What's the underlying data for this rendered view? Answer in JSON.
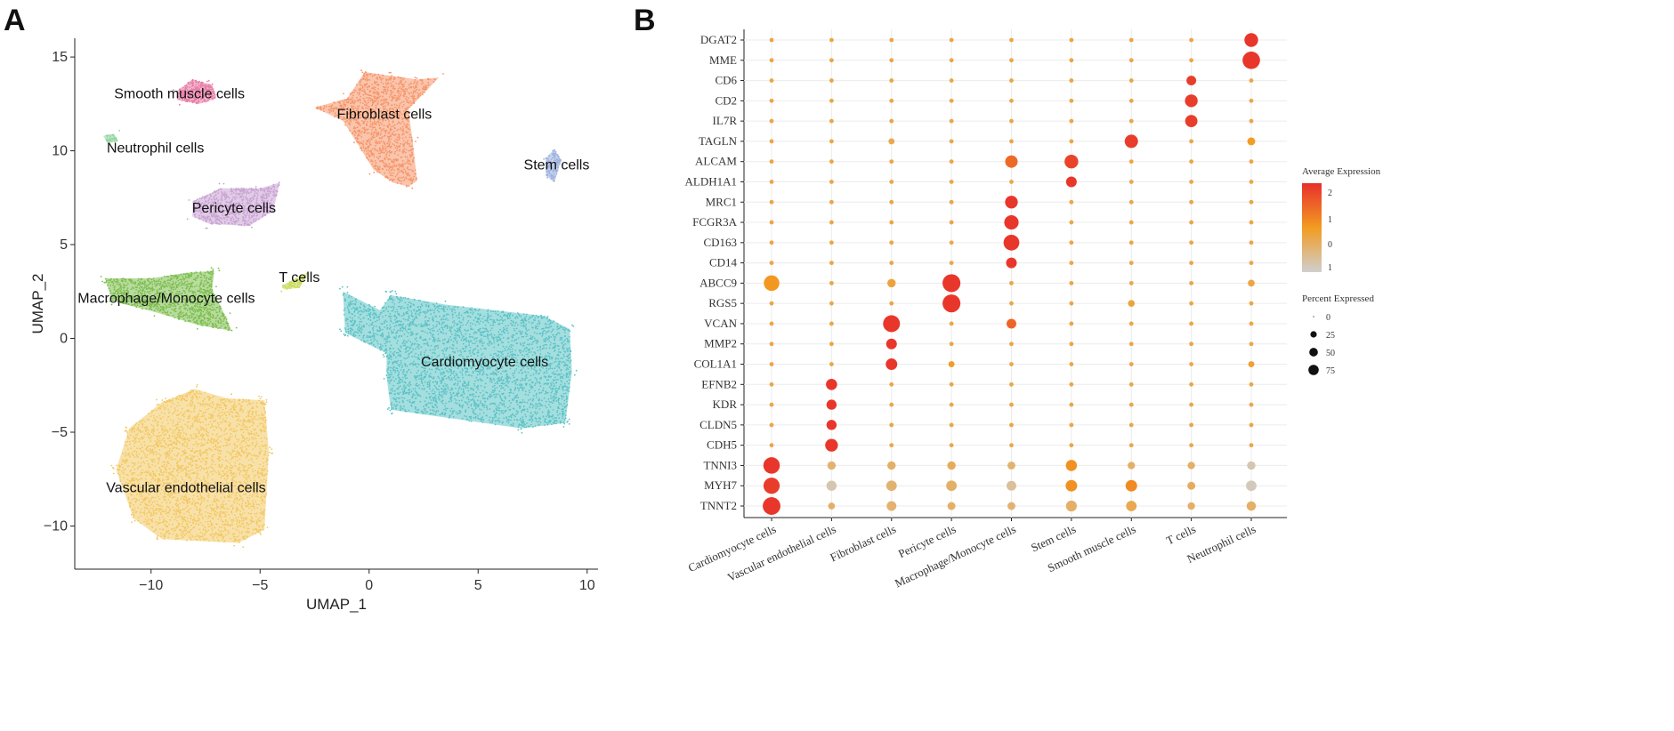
{
  "panels": {
    "a_label": "A",
    "b_label": "B"
  },
  "colors": {
    "cardiomyocyte": "#5BC2C5",
    "vascular": "#F2C863",
    "fibroblast": "#F6956A",
    "smooth": "#E87DA8",
    "pericyte": "#C9A3D3",
    "macrophage": "#7DBE4E",
    "tcells": "#CADB5E",
    "stem": "#9EB3DE",
    "neutrophil": "#8ED39B",
    "expr_high": "#E8302C",
    "expr_mid": "#F29B21",
    "expr_low": "#CFCFCF"
  },
  "chart_data": [
    {
      "type": "scatter",
      "title": "",
      "xlabel": "UMAP_1",
      "ylabel": "UMAP_2",
      "xlim": [
        -13.5,
        10.5
      ],
      "ylim": [
        -12.3,
        16
      ],
      "xticks": [
        -10,
        -5,
        0,
        5,
        10
      ],
      "yticks": [
        -10,
        -5,
        0,
        5,
        10,
        15
      ],
      "clusters": [
        {
          "name": "Cardiomyocyte cells",
          "color_key": "cardiomyocyte",
          "label_xy": [
            5.3,
            -1.5
          ],
          "n": 3200,
          "poly": [
            [
              -1.2,
              2.5
            ],
            [
              0.5,
              1.5
            ],
            [
              1,
              2.3
            ],
            [
              3.5,
              1.8
            ],
            [
              8,
              1.2
            ],
            [
              9.2,
              0.5
            ],
            [
              9.3,
              -1.8
            ],
            [
              9,
              -4.5
            ],
            [
              7,
              -4.8
            ],
            [
              1,
              -3.8
            ],
            [
              0.8,
              -2
            ],
            [
              0.8,
              -0.8
            ],
            [
              -1.1,
              0.3
            ]
          ]
        },
        {
          "name": "Vascular endothelial cells",
          "color_key": "vascular",
          "label_xy": [
            -8.4,
            -8.2
          ],
          "n": 2800,
          "poly": [
            [
              -11,
              -4.8
            ],
            [
              -9.5,
              -3.4
            ],
            [
              -8,
              -2.7
            ],
            [
              -6.5,
              -3.2
            ],
            [
              -4.8,
              -3.3
            ],
            [
              -4.6,
              -6
            ],
            [
              -4.8,
              -10.2
            ],
            [
              -6,
              -10.9
            ],
            [
              -9.5,
              -10.7
            ],
            [
              -10.8,
              -9.6
            ],
            [
              -11.6,
              -7
            ]
          ]
        },
        {
          "name": "Fibroblast cells",
          "color_key": "fibroblast",
          "label_xy": [
            0.7,
            11.7
          ],
          "n": 1300,
          "poly": [
            [
              -2.5,
              12.3
            ],
            [
              -1,
              12.8
            ],
            [
              -0.2,
              14.2
            ],
            [
              1,
              14
            ],
            [
              2.2,
              13.8
            ],
            [
              3.2,
              13.9
            ],
            [
              1.8,
              12.2
            ],
            [
              2,
              10.5
            ],
            [
              2.2,
              8.4
            ],
            [
              1.8,
              8.1
            ],
            [
              1.1,
              8.3
            ],
            [
              0.2,
              9
            ],
            [
              -0.6,
              10.5
            ],
            [
              -1.2,
              11.6
            ]
          ]
        },
        {
          "name": "Smooth muscle cells",
          "color_key": "smooth",
          "label_xy": [
            -8.7,
            12.8
          ],
          "n": 320,
          "poly": [
            [
              -8.8,
              13.2
            ],
            [
              -8.1,
              13.8
            ],
            [
              -7.2,
              13.5
            ],
            [
              -7,
              12.8
            ],
            [
              -7.8,
              12.5
            ],
            [
              -8.8,
              12.7
            ]
          ]
        },
        {
          "name": "Pericyte cells",
          "color_key": "pericyte",
          "label_xy": [
            -6.2,
            6.7
          ],
          "n": 700,
          "poly": [
            [
              -8.1,
              7.3
            ],
            [
              -6.8,
              8
            ],
            [
              -5,
              8
            ],
            [
              -4.1,
              8.3
            ],
            [
              -4.4,
              6.8
            ],
            [
              -5.5,
              6
            ],
            [
              -7.3,
              6.1
            ],
            [
              -8.1,
              6.5
            ]
          ]
        },
        {
          "name": "Macrophage/Monocyte cells",
          "color_key": "macrophage",
          "label_xy": [
            -9.3,
            1.9
          ],
          "n": 1100,
          "poly": [
            [
              -12.1,
              3.2
            ],
            [
              -10,
              3.2
            ],
            [
              -8.4,
              3.5
            ],
            [
              -7.1,
              3.6
            ],
            [
              -7.2,
              2.6
            ],
            [
              -6.6,
              1.2
            ],
            [
              -6.3,
              0.4
            ],
            [
              -7.8,
              0.7
            ],
            [
              -9.8,
              1.4
            ],
            [
              -11.8,
              2
            ]
          ]
        },
        {
          "name": "T cells",
          "color_key": "tcells",
          "label_xy": [
            -3.2,
            3
          ],
          "n": 90,
          "poly": [
            [
              -4,
              2.8
            ],
            [
              -3.4,
              3.2
            ],
            [
              -2.8,
              3.5
            ],
            [
              -3.2,
              2.7
            ],
            [
              -3.9,
              2.6
            ]
          ]
        },
        {
          "name": "Stem cells",
          "color_key": "stem",
          "label_xy": [
            8.6,
            9
          ],
          "n": 150,
          "poly": [
            [
              8.1,
              9.6
            ],
            [
              8.5,
              10.1
            ],
            [
              8.8,
              9.5
            ],
            [
              8.5,
              8.3
            ],
            [
              8.1,
              8.7
            ]
          ]
        },
        {
          "name": "Neutrophil cells",
          "color_key": "neutrophil",
          "label_xy": [
            -9.8,
            9.9
          ],
          "n": 30,
          "poly": [
            [
              -12.2,
              10.8
            ],
            [
              -11.7,
              10.9
            ],
            [
              -11.5,
              10.5
            ],
            [
              -12,
              10.4
            ]
          ]
        }
      ]
    },
    {
      "type": "dotplot",
      "legend_color_title": "Average Expression",
      "legend_color_ticks": [
        "2",
        "1",
        "0",
        "1"
      ],
      "legend_size_title": "Percent Expressed",
      "legend_size_values": [
        0,
        25,
        50,
        75
      ],
      "legend_size_labels": [
        "0",
        "25",
        "50",
        "75"
      ],
      "cell_types": [
        "Cardiomyocyte cells",
        "Vascular endothelial cells",
        "Fibroblast cells",
        "Pericyte cells",
        "Macrophage/Monocyte cells",
        "Stem cells",
        "Smooth muscle cells",
        "T cells",
        "Neutrophil cells"
      ],
      "genes": [
        "DGAT2",
        "MME",
        "CD6",
        "CD2",
        "IL7R",
        "TAGLN",
        "ALCAM",
        "ALDH1A1",
        "MRC1",
        "FCGR3A",
        "CD163",
        "CD14",
        "ABCC9",
        "RGS5",
        "VCAN",
        "MMP2",
        "COL1A1",
        "EFNB2",
        "KDR",
        "CLDN5",
        "CDH5",
        "TNNI3",
        "MYH7",
        "TNNT2"
      ],
      "points": [
        {
          "gene": "DGAT2",
          "cell": "Neutrophil cells",
          "pct": 45,
          "expr": 2.2
        },
        {
          "gene": "MME",
          "cell": "Neutrophil cells",
          "pct": 78,
          "expr": 2.2
        },
        {
          "gene": "CD6",
          "cell": "T cells",
          "pct": 20,
          "expr": 2.1
        },
        {
          "gene": "CD2",
          "cell": "T cells",
          "pct": 38,
          "expr": 2.1
        },
        {
          "gene": "IL7R",
          "cell": "T cells",
          "pct": 35,
          "expr": 2.1
        },
        {
          "gene": "TAGLN",
          "cell": "Smooth muscle cells",
          "pct": 42,
          "expr": 2.1
        },
        {
          "gene": "TAGLN",
          "cell": "Neutrophil cells",
          "pct": 12,
          "expr": 0.6
        },
        {
          "gene": "TAGLN",
          "cell": "Fibroblast cells",
          "pct": 6,
          "expr": 0.2
        },
        {
          "gene": "ALCAM",
          "cell": "Macrophage/Monocyte cells",
          "pct": 36,
          "expr": 1.4
        },
        {
          "gene": "ALCAM",
          "cell": "Stem cells",
          "pct": 45,
          "expr": 2
        },
        {
          "gene": "ALDH1A1",
          "cell": "Stem cells",
          "pct": 25,
          "expr": 2.2
        },
        {
          "gene": "MRC1",
          "cell": "Macrophage/Monocyte cells",
          "pct": 38,
          "expr": 2.2
        },
        {
          "gene": "FCGR3A",
          "cell": "Macrophage/Monocyte cells",
          "pct": 50,
          "expr": 2.2
        },
        {
          "gene": "CD163",
          "cell": "Macrophage/Monocyte cells",
          "pct": 62,
          "expr": 2.2
        },
        {
          "gene": "CD14",
          "cell": "Macrophage/Monocyte cells",
          "pct": 25,
          "expr": 2.2
        },
        {
          "gene": "ABCC9",
          "cell": "Cardiomyocyte cells",
          "pct": 60,
          "expr": 0.7
        },
        {
          "gene": "ABCC9",
          "cell": "Pericyte cells",
          "pct": 82,
          "expr": 2.2
        },
        {
          "gene": "ABCC9",
          "cell": "Fibroblast cells",
          "pct": 14,
          "expr": 0.4
        },
        {
          "gene": "ABCC9",
          "cell": "Neutrophil cells",
          "pct": 8,
          "expr": 0.3
        },
        {
          "gene": "RGS5",
          "cell": "Pericyte cells",
          "pct": 82,
          "expr": 2.2
        },
        {
          "gene": "RGS5",
          "cell": "Smooth muscle cells",
          "pct": 8,
          "expr": 0.4
        },
        {
          "gene": "VCAN",
          "cell": "Fibroblast cells",
          "pct": 72,
          "expr": 2.2
        },
        {
          "gene": "VCAN",
          "cell": "Macrophage/Monocyte cells",
          "pct": 20,
          "expr": 1.5
        },
        {
          "gene": "MMP2",
          "cell": "Fibroblast cells",
          "pct": 25,
          "expr": 2.2
        },
        {
          "gene": "COL1A1",
          "cell": "Fibroblast cells",
          "pct": 30,
          "expr": 2.2
        },
        {
          "gene": "COL1A1",
          "cell": "Pericyte cells",
          "pct": 6,
          "expr": 0.6
        },
        {
          "gene": "COL1A1",
          "cell": "Neutrophil cells",
          "pct": 6,
          "expr": 0.5
        },
        {
          "gene": "EFNB2",
          "cell": "Vascular endothelial cells",
          "pct": 28,
          "expr": 2.2
        },
        {
          "gene": "KDR",
          "cell": "Vascular endothelial cells",
          "pct": 22,
          "expr": 2.2
        },
        {
          "gene": "CLDN5",
          "cell": "Vascular endothelial cells",
          "pct": 22,
          "expr": 2.2
        },
        {
          "gene": "CDH5",
          "cell": "Vascular endothelial cells",
          "pct": 38,
          "expr": 2.2
        },
        {
          "gene": "TNNI3",
          "cell": "Cardiomyocyte cells",
          "pct": 68,
          "expr": 2.2
        },
        {
          "gene": "TNNI3",
          "cell": "Vascular endothelial cells",
          "pct": 14,
          "expr": -0.1
        },
        {
          "gene": "TNNI3",
          "cell": "Fibroblast cells",
          "pct": 14,
          "expr": 0
        },
        {
          "gene": "TNNI3",
          "cell": "Pericyte cells",
          "pct": 14,
          "expr": 0.1
        },
        {
          "gene": "TNNI3",
          "cell": "Macrophage/Monocyte cells",
          "pct": 12,
          "expr": -0.1
        },
        {
          "gene": "TNNI3",
          "cell": "Stem cells",
          "pct": 28,
          "expr": 0.8
        },
        {
          "gene": "TNNI3",
          "cell": "Smooth muscle cells",
          "pct": 10,
          "expr": 0
        },
        {
          "gene": "TNNI3",
          "cell": "T cells",
          "pct": 10,
          "expr": 0
        },
        {
          "gene": "TNNI3",
          "cell": "Neutrophil cells",
          "pct": 14,
          "expr": -0.7
        },
        {
          "gene": "MYH7",
          "cell": "Cardiomyocyte cells",
          "pct": 66,
          "expr": 2.1
        },
        {
          "gene": "MYH7",
          "cell": "Vascular endothelial cells",
          "pct": 22,
          "expr": -0.7
        },
        {
          "gene": "MYH7",
          "cell": "Fibroblast cells",
          "pct": 24,
          "expr": -0.1
        },
        {
          "gene": "MYH7",
          "cell": "Pericyte cells",
          "pct": 24,
          "expr": 0
        },
        {
          "gene": "MYH7",
          "cell": "Macrophage/Monocyte cells",
          "pct": 20,
          "expr": -0.5
        },
        {
          "gene": "MYH7",
          "cell": "Stem cells",
          "pct": 30,
          "expr": 0.8
        },
        {
          "gene": "MYH7",
          "cell": "Smooth muscle cells",
          "pct": 30,
          "expr": 0.9
        },
        {
          "gene": "MYH7",
          "cell": "T cells",
          "pct": 12,
          "expr": 0.1
        },
        {
          "gene": "MYH7",
          "cell": "Neutrophil cells",
          "pct": 24,
          "expr": -0.8
        },
        {
          "gene": "TNNT2",
          "cell": "Cardiomyocyte cells",
          "pct": 80,
          "expr": 2.2
        },
        {
          "gene": "TNNT2",
          "cell": "Vascular endothelial cells",
          "pct": 8,
          "expr": 0
        },
        {
          "gene": "TNNT2",
          "cell": "Fibroblast cells",
          "pct": 20,
          "expr": -0.1
        },
        {
          "gene": "TNNT2",
          "cell": "Pericyte cells",
          "pct": 12,
          "expr": 0
        },
        {
          "gene": "TNNT2",
          "cell": "Macrophage/Monocyte cells",
          "pct": 12,
          "expr": -0.1
        },
        {
          "gene": "TNNT2",
          "cell": "Stem cells",
          "pct": 26,
          "expr": 0
        },
        {
          "gene": "TNNT2",
          "cell": "Smooth muscle cells",
          "pct": 24,
          "expr": 0.2
        },
        {
          "gene": "TNNT2",
          "cell": "T cells",
          "pct": 10,
          "expr": 0
        },
        {
          "gene": "TNNT2",
          "cell": "Neutrophil cells",
          "pct": 18,
          "expr": 0
        }
      ],
      "background_pct": 2,
      "background_expr": 0.3
    }
  ]
}
